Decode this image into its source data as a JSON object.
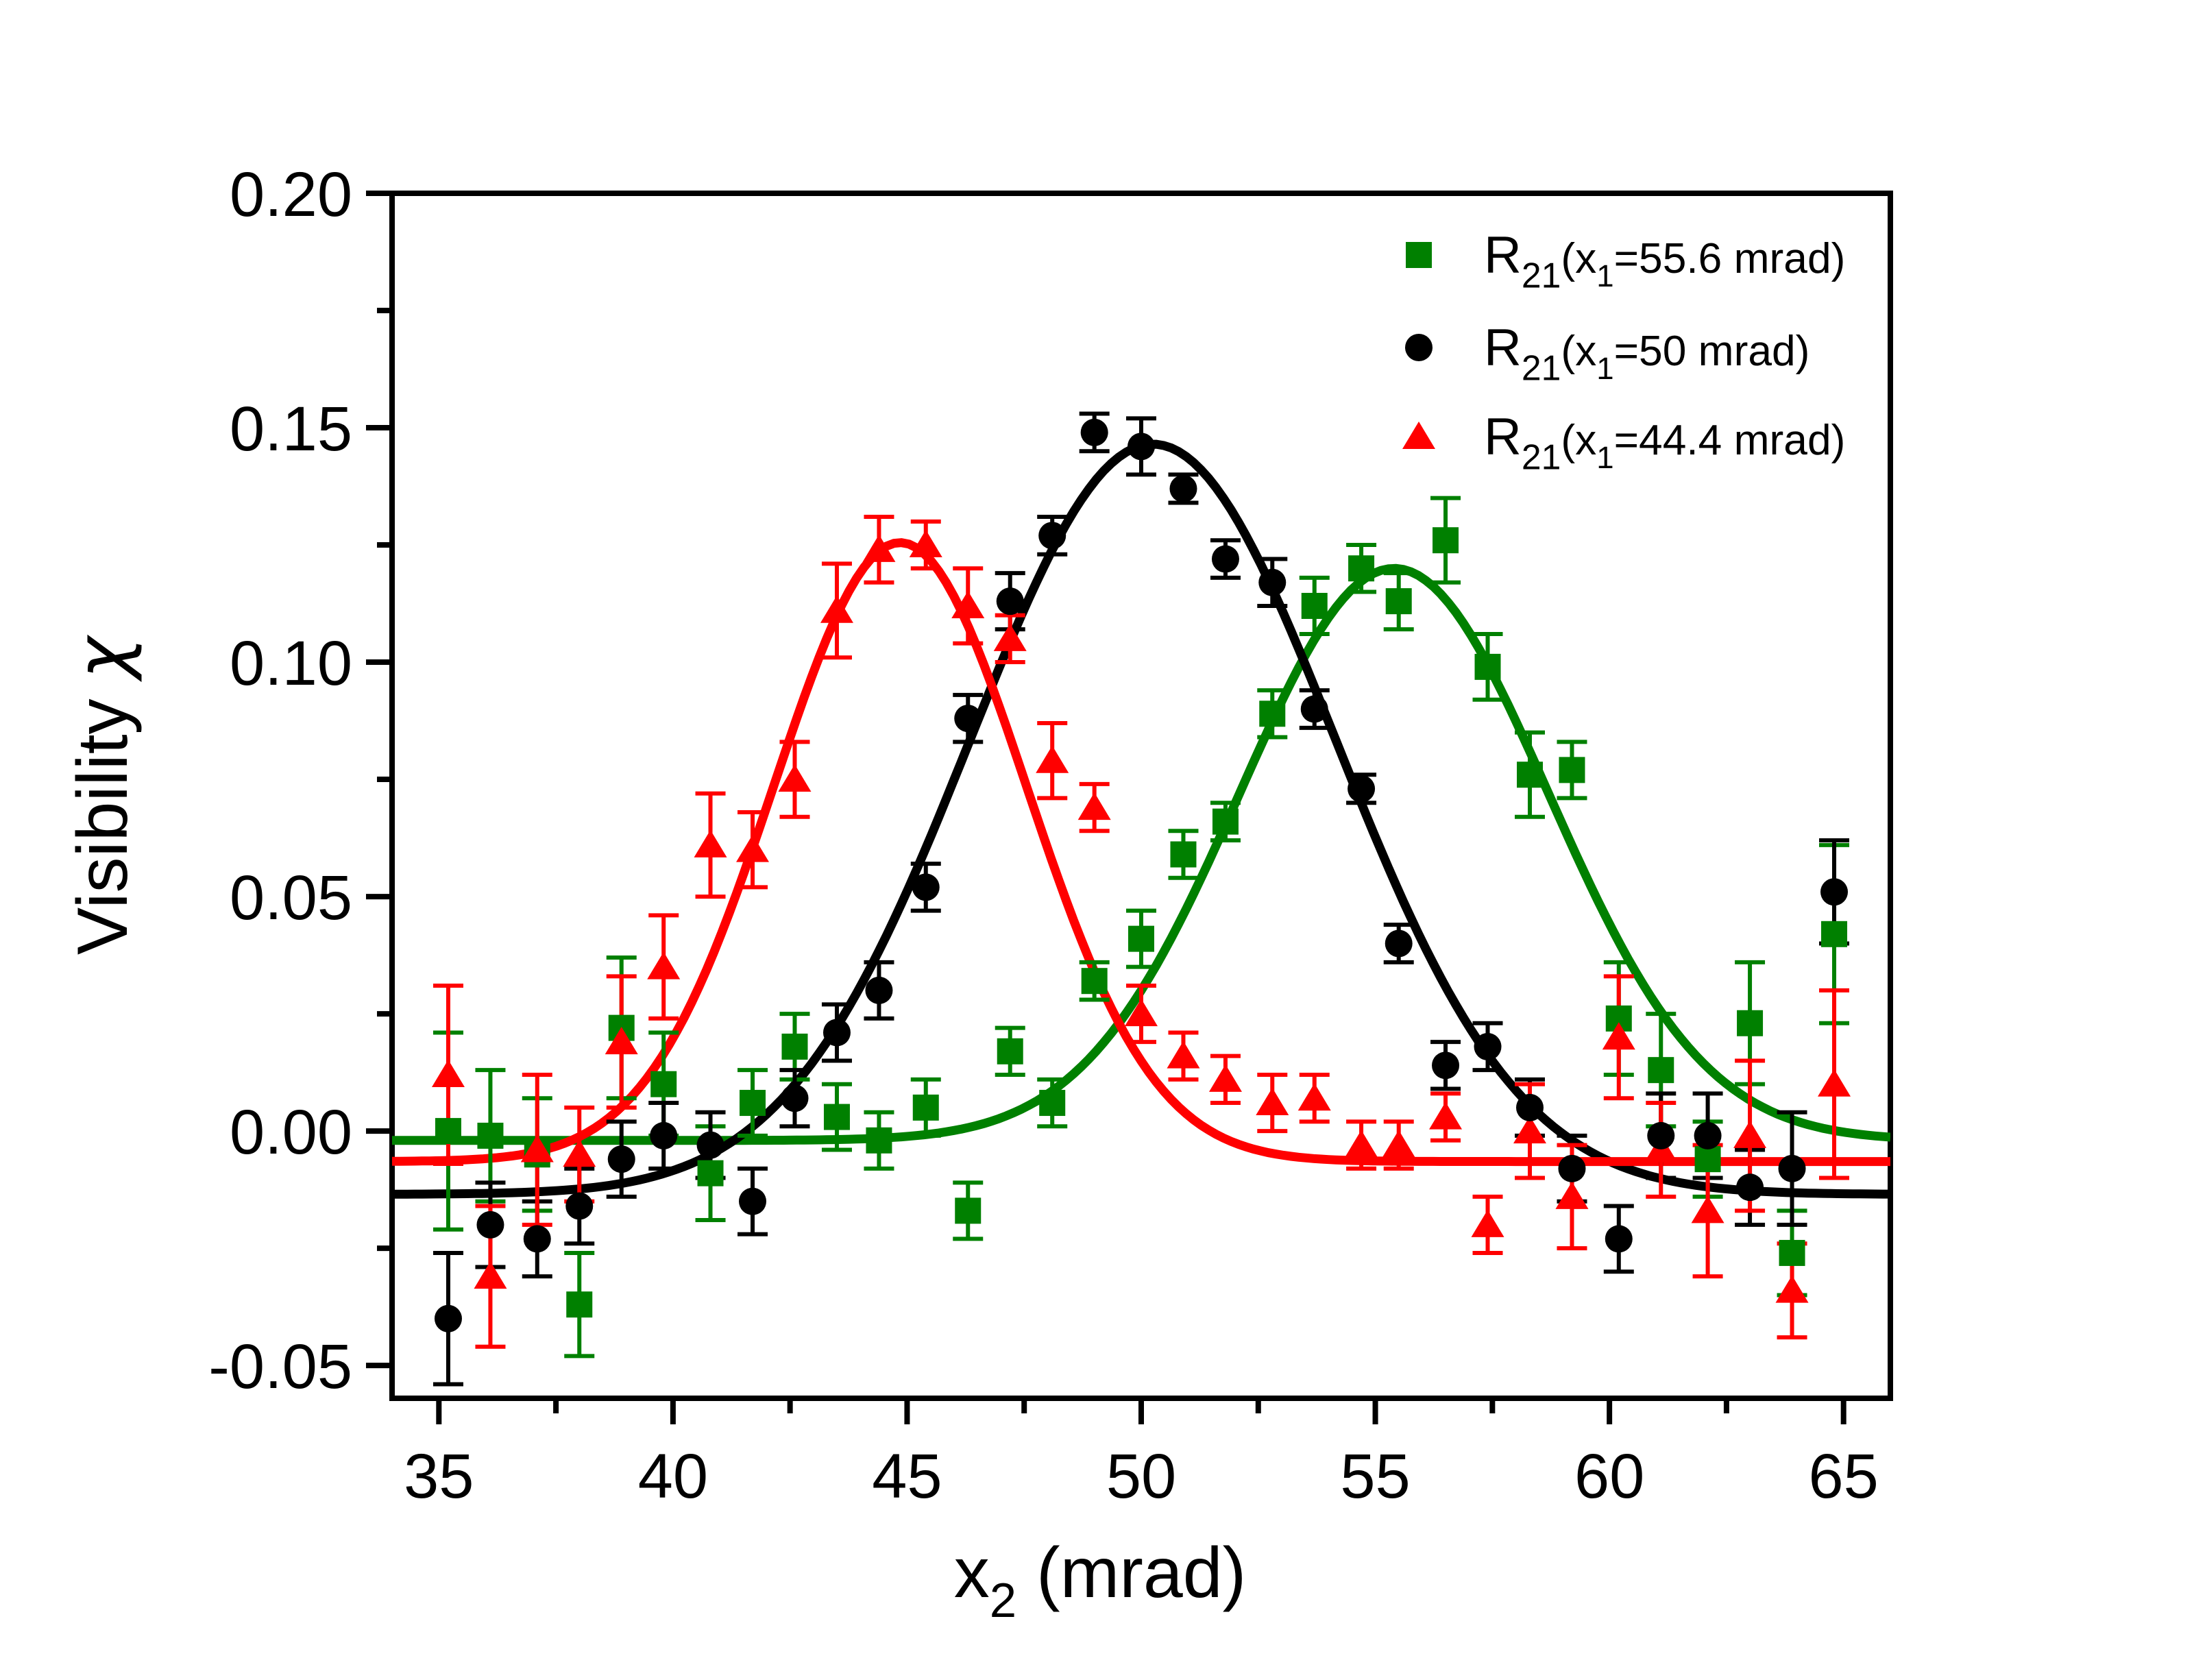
{
  "figure": {
    "background": "#ffffff"
  },
  "axes": {
    "x": {
      "title_segments": [
        {
          "t": "x"
        },
        {
          "t": "2",
          "sub": true
        },
        {
          "t": " (mrad)"
        }
      ],
      "title_text": "x2 (mrad)",
      "min": 34.0,
      "max": 66.0,
      "major_ticks": [
        35,
        40,
        45,
        50,
        55,
        60,
        65
      ],
      "tick_labels": [
        "35",
        "40",
        "45",
        "50",
        "55",
        "60",
        "65"
      ],
      "minor_ticks": [
        37.5,
        42.5,
        47.5,
        52.5,
        57.5,
        62.5
      ]
    },
    "y": {
      "title_segments": [
        {
          "t": "Visibility "
        },
        {
          "t": "χ",
          "italic": true
        }
      ],
      "title_text": "Visibility χ",
      "min": -0.057,
      "max": 0.2,
      "major_ticks": [
        0.2,
        0.15,
        0.1,
        0.05,
        0.0,
        -0.05
      ],
      "tick_labels": [
        "0.20",
        "0.15",
        "0.10",
        "0.05",
        "0.00",
        "-0.05"
      ],
      "minor_ticks": [
        0.175,
        0.125,
        0.075,
        0.025,
        -0.025
      ]
    }
  },
  "legend": {
    "entries": [
      {
        "marker": "square",
        "color": "#008000",
        "label_text": "R21(x1=55.6 mrad)",
        "segments": [
          {
            "t": "R"
          },
          {
            "t": "21",
            "sub": true
          },
          {
            "t": "(x",
            "small": true
          },
          {
            "t": "1",
            "subsmall": true
          },
          {
            "t": "=55.6 mrad)",
            "small": true
          }
        ]
      },
      {
        "marker": "circle",
        "color": "#000000",
        "label_text": "R21(x1=50 mrad)",
        "segments": [
          {
            "t": "R"
          },
          {
            "t": "21",
            "sub": true
          },
          {
            "t": "(x",
            "small": true
          },
          {
            "t": "1",
            "subsmall": true
          },
          {
            "t": "=50 mrad)",
            "small": true
          }
        ]
      },
      {
        "marker": "triangle",
        "color": "#ff0000",
        "label_text": "R21(x1=44.4 mrad)",
        "segments": [
          {
            "t": "R"
          },
          {
            "t": "21",
            "sub": true
          },
          {
            "t": "(x",
            "small": true
          },
          {
            "t": "1",
            "subsmall": true
          },
          {
            "t": "=44.4 mrad)",
            "small": true
          }
        ]
      }
    ]
  },
  "chart_data": {
    "type": "scatter",
    "title": "",
    "xlabel": "x2 (mrad)",
    "ylabel": "Visibility χ",
    "xlim": [
      34.0,
      66.0
    ],
    "ylim": [
      -0.057,
      0.2
    ],
    "grid": false,
    "legend_position": "top-right",
    "x": [
      35.2,
      36.1,
      37.1,
      38.0,
      38.9,
      39.8,
      40.8,
      41.7,
      42.6,
      43.5,
      44.4,
      45.4,
      46.3,
      47.2,
      48.1,
      49.0,
      50.0,
      50.9,
      51.8,
      52.8,
      53.7,
      54.7,
      55.5,
      56.5,
      57.4,
      58.3,
      59.2,
      60.2,
      61.1,
      62.1,
      63.0,
      63.9,
      64.8
    ],
    "series": [
      {
        "name": "R21(x1=55.6 mrad)",
        "color": "#008000",
        "marker": "square",
        "values": [
          0.0,
          -0.001,
          -0.005,
          -0.037,
          0.022,
          0.01,
          -0.009,
          0.006,
          0.018,
          0.003,
          -0.002,
          0.005,
          -0.017,
          0.017,
          0.006,
          0.032,
          0.041,
          0.059,
          0.066,
          0.089,
          0.112,
          0.12,
          0.113,
          0.126,
          0.099,
          0.076,
          0.077,
          0.024,
          0.013,
          -0.006,
          0.023,
          -0.026,
          0.042
        ],
        "errors": [
          0.021,
          0.014,
          0.012,
          0.011,
          0.015,
          0.011,
          0.01,
          0.007,
          0.007,
          0.007,
          0.006,
          0.006,
          0.006,
          0.005,
          0.005,
          0.004,
          0.006,
          0.005,
          0.004,
          0.005,
          0.006,
          0.005,
          0.006,
          0.009,
          0.007,
          0.009,
          0.006,
          0.012,
          0.012,
          0.008,
          0.013,
          0.009,
          0.019
        ],
        "fit": {
          "type": "gaussian",
          "baseline": -0.002,
          "amplitude": 0.122,
          "mean": 55.4,
          "sigma": 3.3
        }
      },
      {
        "name": "R21(x1=50 mrad)",
        "color": "#000000",
        "marker": "circle",
        "values": [
          -0.04,
          -0.02,
          -0.023,
          -0.016,
          -0.006,
          -0.001,
          -0.003,
          -0.015,
          0.007,
          0.021,
          0.03,
          0.052,
          0.088,
          0.113,
          0.127,
          0.149,
          0.146,
          0.137,
          0.122,
          0.117,
          0.09,
          0.073,
          0.04,
          0.014,
          0.018,
          0.005,
          -0.008,
          -0.023,
          -0.001,
          -0.001,
          -0.012,
          -0.008,
          0.051
        ],
        "errors": [
          0.014,
          0.009,
          0.008,
          0.008,
          0.008,
          0.007,
          0.007,
          0.007,
          0.006,
          0.006,
          0.006,
          0.005,
          0.005,
          0.006,
          0.004,
          0.004,
          0.006,
          0.003,
          0.004,
          0.005,
          0.004,
          0.003,
          0.004,
          0.005,
          0.005,
          0.006,
          0.007,
          0.007,
          0.009,
          0.009,
          0.008,
          0.012,
          0.011
        ],
        "fit": {
          "type": "gaussian",
          "baseline": -0.0135,
          "amplitude": 0.16,
          "mean": 50.25,
          "sigma": 3.9
        }
      },
      {
        "name": "R21(x1=44.4 mrad)",
        "color": "#ff0000",
        "marker": "triangle",
        "values": [
          0.012,
          -0.031,
          -0.004,
          -0.005,
          0.019,
          0.035,
          0.061,
          0.06,
          0.075,
          0.111,
          0.124,
          0.125,
          0.112,
          0.105,
          0.079,
          0.069,
          0.025,
          0.016,
          0.011,
          0.006,
          0.007,
          -0.003,
          -0.003,
          0.003,
          -0.02,
          0.0,
          -0.014,
          0.02,
          -0.004,
          -0.017,
          -0.001,
          -0.034,
          0.01
        ],
        "errors": [
          0.019,
          0.015,
          0.016,
          0.01,
          0.014,
          0.011,
          0.011,
          0.008,
          0.008,
          0.01,
          0.007,
          0.005,
          0.008,
          0.005,
          0.008,
          0.005,
          0.006,
          0.005,
          0.005,
          0.006,
          0.005,
          0.005,
          0.005,
          0.005,
          0.006,
          0.01,
          0.011,
          0.013,
          0.01,
          0.014,
          0.016,
          0.01,
          0.02
        ],
        "fit": {
          "type": "gaussian",
          "baseline": -0.0065,
          "amplitude": 0.132,
          "mean": 44.85,
          "sigma": 2.7
        }
      }
    ]
  }
}
